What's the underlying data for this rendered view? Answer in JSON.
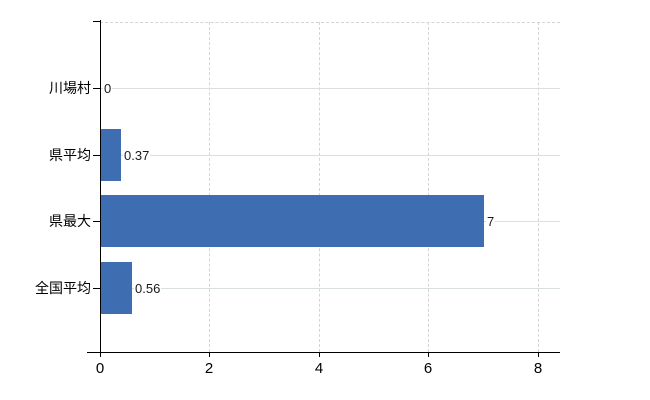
{
  "chart_data": {
    "type": "bar",
    "orientation": "horizontal",
    "title": "",
    "categories": [
      "川場村",
      "県平均",
      "県最大",
      "全国平均"
    ],
    "values": [
      0,
      0.37,
      7,
      0.56
    ],
    "value_labels": [
      "0",
      "0.37",
      "7",
      "0.56"
    ],
    "x_ticks": [
      0,
      2,
      4,
      6,
      8
    ],
    "x_tick_labels": [
      "0",
      "2",
      "4",
      "6",
      "8"
    ],
    "xlim": [
      0,
      8.4
    ],
    "grid": {
      "horizontal": "solid",
      "vertical": "dashed",
      "top_border": "dashed",
      "legend": "none"
    },
    "colors": {
      "bar": "#3e6db1",
      "h_gridline": "#d9e0d9",
      "v_gridline": "#d8d2d8",
      "axis": "#000000",
      "text": "#000000",
      "value_text": "#1a1a1a",
      "background": "#ffffff"
    }
  }
}
